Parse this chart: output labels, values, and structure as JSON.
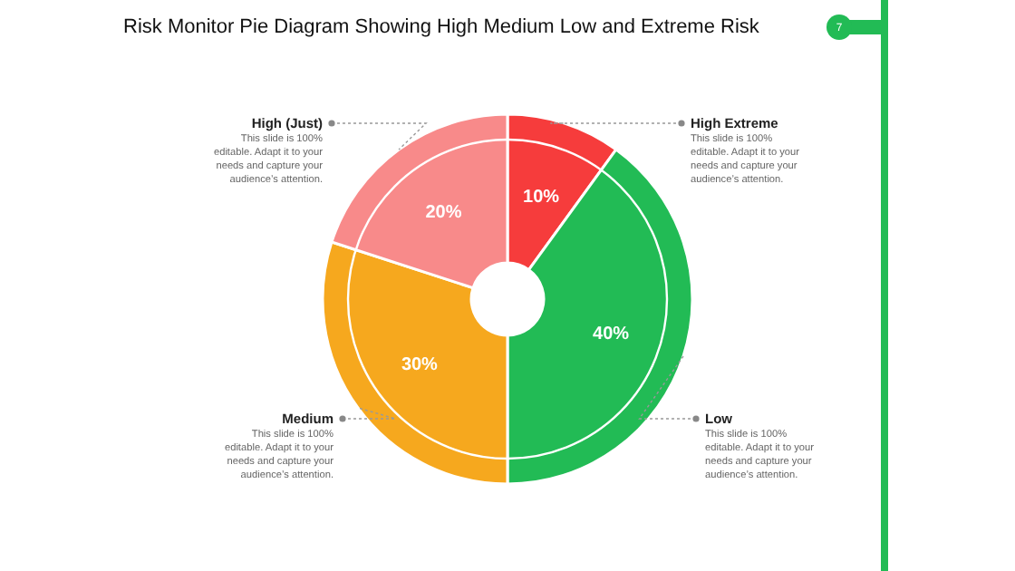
{
  "chart_data": {
    "type": "donut",
    "title": "Risk Monitor Pie Diagram Showing High Medium Low and Extreme Risk",
    "categories": [
      "High Extreme",
      "Low",
      "Medium",
      "High (Just)"
    ],
    "values": [
      10,
      40,
      30,
      20
    ],
    "colors": [
      "#f63c3c",
      "#22bb55",
      "#f6a81e",
      "#f88a8a"
    ],
    "value_labels": [
      "10%",
      "40%",
      "30%",
      "20%"
    ],
    "annotations": [
      "This slide is 100% editable. Adapt it to your needs and capture your audience’s attention.",
      "This slide is 100% editable. Adapt it to your needs and capture your audience’s attention.",
      "This slide is 100% editable. Adapt it to your needs and capture your audience’s attention.",
      "This slide is 100% editable. Adapt it to your needs and capture your audience’s attention.",
      "7"
    ]
  }
}
